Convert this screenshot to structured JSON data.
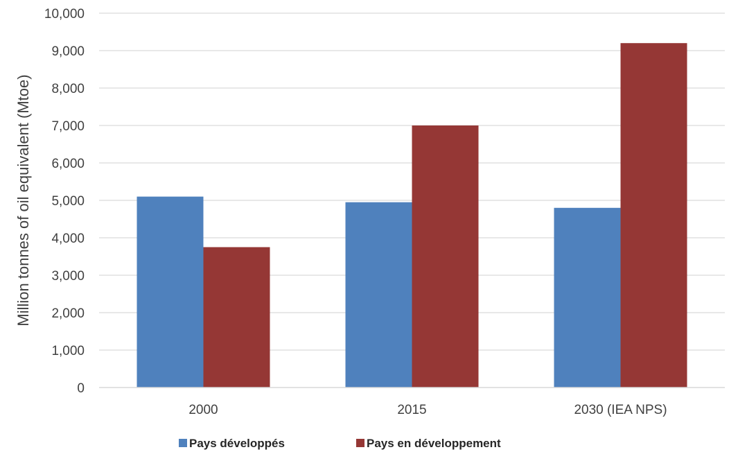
{
  "chart_data": {
    "type": "bar",
    "categories": [
      "2000",
      "2015",
      "2030 (IEA NPS)"
    ],
    "series": [
      {
        "name": "Pays développés",
        "values": [
          5100,
          4950,
          4800
        ],
        "color": "#4f81bd"
      },
      {
        "name": "Pays en développement",
        "values": [
          3750,
          7000,
          9200
        ],
        "color": "#953735"
      }
    ],
    "ylabel": "Million tonnes of oil equivalent (Mtoe)",
    "xlabel": "",
    "ylim": [
      0,
      10000
    ],
    "yticks": [
      "0",
      "1,000",
      "2,000",
      "3,000",
      "4,000",
      "5,000",
      "6,000",
      "7,000",
      "8,000",
      "9,000",
      "10,000"
    ],
    "grid": true,
    "legend": "bottom",
    "gridline_color": "#d9d9d9"
  }
}
